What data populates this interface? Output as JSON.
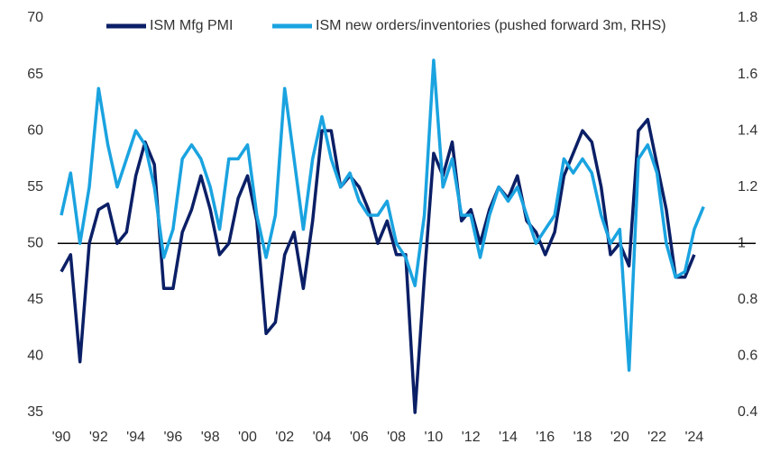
{
  "chart_data": {
    "type": "line",
    "x": [
      1990,
      1990.5,
      1991,
      1991.5,
      1992,
      1992.5,
      1993,
      1993.5,
      1994,
      1994.5,
      1995,
      1995.5,
      1996,
      1996.5,
      1997,
      1997.5,
      1998,
      1998.5,
      1999,
      1999.5,
      2000,
      2000.5,
      2001,
      2001.5,
      2002,
      2002.5,
      2003,
      2003.5,
      2004,
      2004.5,
      2005,
      2005.5,
      2006,
      2006.5,
      2007,
      2007.5,
      2008,
      2008.5,
      2009,
      2009.5,
      2010,
      2010.5,
      2011,
      2011.5,
      2012,
      2012.5,
      2013,
      2013.5,
      2014,
      2014.5,
      2015,
      2015.5,
      2016,
      2016.5,
      2017,
      2017.5,
      2018,
      2018.5,
      2019,
      2019.5,
      2020,
      2020.5,
      2021,
      2021.5,
      2022,
      2022.5,
      2023,
      2023.5,
      2024,
      2024.5
    ],
    "series": [
      {
        "name": "ISM Mfg PMI",
        "color": "#0b1f66",
        "values": [
          47.5,
          49,
          39.5,
          50,
          53,
          53.5,
          50,
          51,
          56,
          59,
          57,
          46,
          46,
          51,
          53,
          56,
          53,
          49,
          50,
          54,
          56,
          52,
          42,
          43,
          49,
          51,
          46,
          52,
          60,
          60,
          55,
          56,
          55,
          53,
          50,
          52,
          49,
          49,
          35,
          47,
          58,
          56,
          59,
          52,
          53,
          50,
          53,
          55,
          54,
          56,
          52,
          51,
          49,
          51,
          56,
          58,
          60,
          59,
          55,
          49,
          50,
          48,
          60,
          61,
          57,
          53,
          47,
          47,
          49,
          null
        ]
      },
      {
        "name": "ISM new orders/inventories (pushed forward 3m, RHS)",
        "color": "#1aa3e0",
        "axis": "y2",
        "values": [
          1.1,
          1.25,
          1.0,
          1.2,
          1.55,
          1.35,
          1.2,
          1.3,
          1.4,
          1.35,
          1.2,
          0.95,
          1.05,
          1.3,
          1.35,
          1.3,
          1.2,
          1.05,
          1.3,
          1.3,
          1.35,
          1.1,
          0.95,
          1.1,
          1.55,
          1.3,
          1.05,
          1.3,
          1.45,
          1.3,
          1.2,
          1.25,
          1.15,
          1.1,
          1.1,
          1.15,
          1.0,
          0.95,
          0.85,
          1.1,
          1.65,
          1.2,
          1.3,
          1.1,
          1.1,
          0.95,
          1.1,
          1.2,
          1.15,
          1.2,
          1.1,
          1.0,
          1.05,
          1.1,
          1.3,
          1.25,
          1.3,
          1.25,
          1.1,
          1.0,
          1.05,
          0.55,
          1.3,
          1.35,
          1.25,
          1.0,
          0.88,
          0.9,
          1.05,
          1.13
        ]
      }
    ],
    "reference_line": 50,
    "xlim": [
      1989.8,
      2027.3
    ],
    "xticks": [
      {
        "value": 1990,
        "label": "'90"
      },
      {
        "value": 1992,
        "label": "'92"
      },
      {
        "value": 1994,
        "label": "'94"
      },
      {
        "value": 1996,
        "label": "'96"
      },
      {
        "value": 1998,
        "label": "'98"
      },
      {
        "value": 2000,
        "label": "'00"
      },
      {
        "value": 2002,
        "label": "'02"
      },
      {
        "value": 2004,
        "label": "'04"
      },
      {
        "value": 2006,
        "label": "'06"
      },
      {
        "value": 2008,
        "label": "'08"
      },
      {
        "value": 2010,
        "label": "'10"
      },
      {
        "value": 2012,
        "label": "'12"
      },
      {
        "value": 2014,
        "label": "'14"
      },
      {
        "value": 2016,
        "label": "'16"
      },
      {
        "value": 2018,
        "label": "'18"
      },
      {
        "value": 2020,
        "label": "'20"
      },
      {
        "value": 2022,
        "label": "'22"
      },
      {
        "value": 2024,
        "label": "'24"
      }
    ],
    "ylim": [
      35,
      70
    ],
    "yticks": [
      35,
      40,
      45,
      50,
      55,
      60,
      65,
      70
    ],
    "y2lim": [
      0.4,
      1.8
    ],
    "y2ticks": [
      0.4,
      0.6,
      0.8,
      1,
      1.2,
      1.4,
      1.6,
      1.8
    ]
  }
}
